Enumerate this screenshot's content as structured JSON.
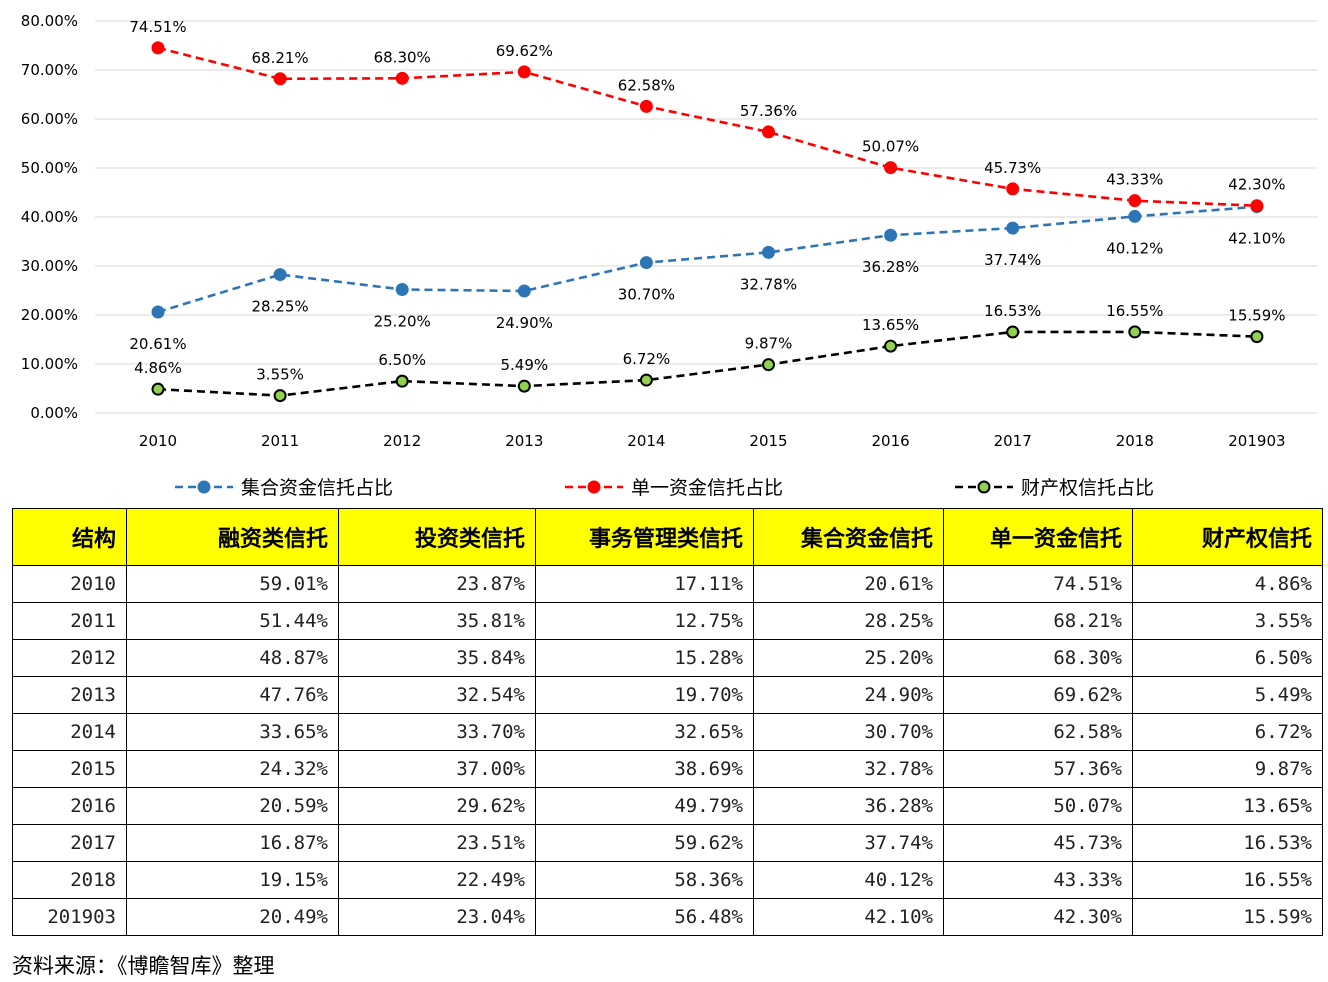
{
  "chart_data": {
    "type": "line",
    "categories": [
      "2010",
      "2011",
      "2012",
      "2013",
      "2014",
      "2015",
      "2016",
      "2017",
      "2018",
      "201903"
    ],
    "ylim": [
      0,
      80
    ],
    "yticks": [
      "0.00%",
      "10.00%",
      "20.00%",
      "30.00%",
      "40.00%",
      "50.00%",
      "60.00%",
      "70.00%",
      "80.00%"
    ],
    "grid": true,
    "legend_position": "bottom",
    "series": [
      {
        "name": "集合资金信托占比",
        "color": "#2E75B6",
        "line": "dashed",
        "label_pos": "below",
        "values": [
          20.61,
          28.25,
          25.2,
          24.9,
          30.7,
          32.78,
          36.28,
          37.74,
          40.12,
          42.1
        ],
        "labels": [
          "20.61%",
          "28.25%",
          "25.20%",
          "24.90%",
          "30.70%",
          "32.78%",
          "36.28%",
          "37.74%",
          "40.12%",
          "42.10%"
        ]
      },
      {
        "name": "单一资金信托占比",
        "color": "#FF0000",
        "line": "dashed",
        "label_pos": "above",
        "values": [
          74.51,
          68.21,
          68.3,
          69.62,
          62.58,
          57.36,
          50.07,
          45.73,
          43.33,
          42.3
        ],
        "labels": [
          "74.51%",
          "68.21%",
          "68.30%",
          "69.62%",
          "62.58%",
          "57.36%",
          "50.07%",
          "45.73%",
          "43.33%",
          "42.30%"
        ]
      },
      {
        "name": "财产权信托占比",
        "color": "#000000",
        "marker": "#92D050",
        "line": "dashed",
        "label_pos": "above",
        "values": [
          4.86,
          3.55,
          6.5,
          5.49,
          6.72,
          9.87,
          13.65,
          16.53,
          16.55,
          15.59
        ],
        "labels": [
          "4.86%",
          "3.55%",
          "6.50%",
          "5.49%",
          "6.72%",
          "9.87%",
          "13.65%",
          "16.53%",
          "16.55%",
          "15.59%"
        ]
      }
    ]
  },
  "table": {
    "headers": [
      "结构",
      "融资类信托",
      "投资类信托",
      "事务管理类信托",
      "集合资金信托",
      "单一资金信托",
      "财产权信托"
    ],
    "rows": [
      [
        "2010",
        "59.01%",
        "23.87%",
        "17.11%",
        "20.61%",
        "74.51%",
        "4.86%"
      ],
      [
        "2011",
        "51.44%",
        "35.81%",
        "12.75%",
        "28.25%",
        "68.21%",
        "3.55%"
      ],
      [
        "2012",
        "48.87%",
        "35.84%",
        "15.28%",
        "25.20%",
        "68.30%",
        "6.50%"
      ],
      [
        "2013",
        "47.76%",
        "32.54%",
        "19.70%",
        "24.90%",
        "69.62%",
        "5.49%"
      ],
      [
        "2014",
        "33.65%",
        "33.70%",
        "32.65%",
        "30.70%",
        "62.58%",
        "6.72%"
      ],
      [
        "2015",
        "24.32%",
        "37.00%",
        "38.69%",
        "32.78%",
        "57.36%",
        "9.87%"
      ],
      [
        "2016",
        "20.59%",
        "29.62%",
        "49.79%",
        "36.28%",
        "50.07%",
        "13.65%"
      ],
      [
        "2017",
        "16.87%",
        "23.51%",
        "59.62%",
        "37.74%",
        "45.73%",
        "16.53%"
      ],
      [
        "2018",
        "19.15%",
        "22.49%",
        "58.36%",
        "40.12%",
        "43.33%",
        "16.55%"
      ],
      [
        "201903",
        "20.49%",
        "23.04%",
        "56.48%",
        "42.10%",
        "42.30%",
        "15.59%"
      ]
    ]
  },
  "source": "资料来源：《博瞻智库》整理"
}
